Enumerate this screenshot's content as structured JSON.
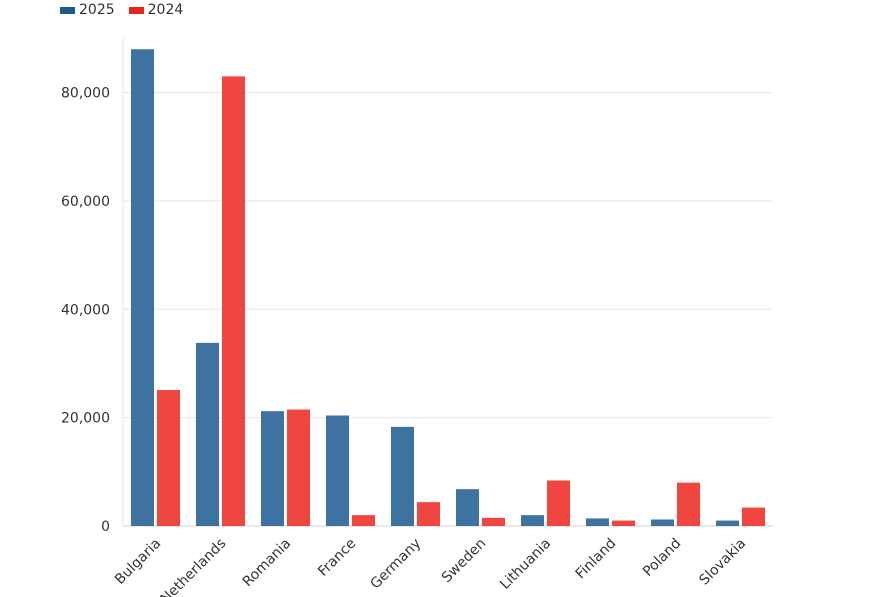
{
  "chart_data": {
    "type": "bar",
    "categories": [
      "Bulgaria",
      "Netherlands",
      "Romania",
      "France",
      "Germany",
      "Sweden",
      "Lithuania",
      "Finland",
      "Poland",
      "Slovakia"
    ],
    "series": [
      {
        "name": "2025",
        "color": "#346a9b",
        "values": [
          88000,
          33800,
          21200,
          20400,
          18300,
          6800,
          2000,
          1400,
          1200,
          1000
        ]
      },
      {
        "name": "2024",
        "color": "#ef3c36",
        "values": [
          25100,
          83000,
          21500,
          2000,
          4400,
          1500,
          8400,
          1000,
          8000,
          3400
        ]
      }
    ],
    "yticks": [
      0,
      20000,
      40000,
      60000,
      80000
    ],
    "ytick_labels": [
      "0",
      "20,000",
      "40,000",
      "60,000",
      "80,000"
    ],
    "ylim": [
      0,
      90000
    ],
    "grid": true,
    "legend_position": "top-left"
  }
}
